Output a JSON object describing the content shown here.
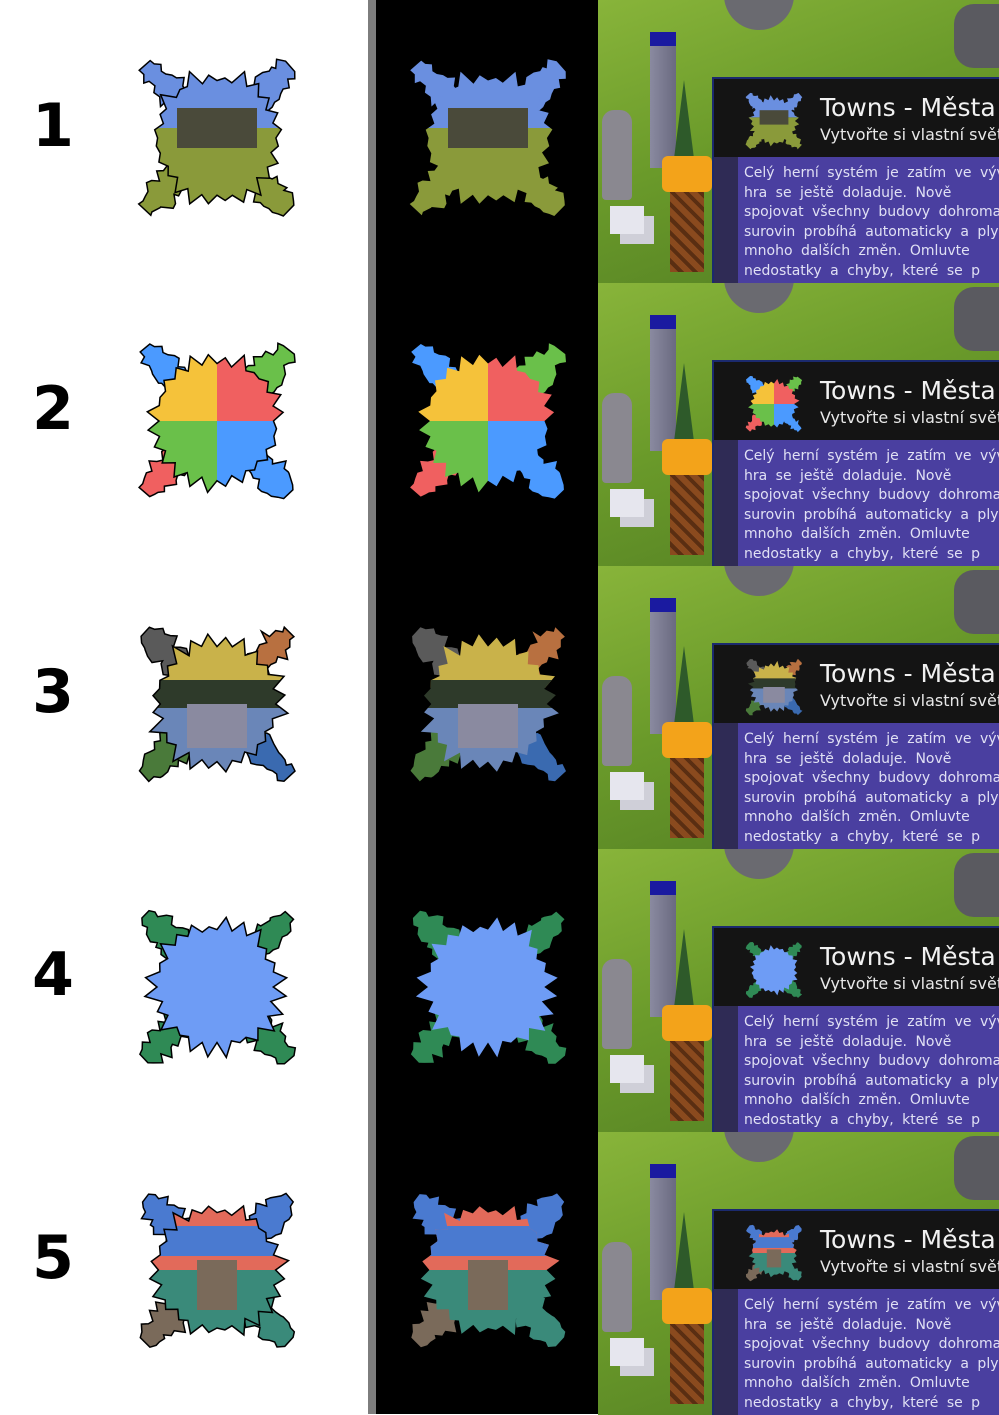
{
  "rows": [
    {
      "number": "1",
      "style": "landscape",
      "colors": [
        "#6a8fe0",
        "#8a9a3a",
        "#4a4a3a"
      ]
    },
    {
      "number": "2",
      "style": "quad",
      "colors": [
        "#f06060",
        "#f5c23a",
        "#6ac04a",
        "#4b9aff"
      ]
    },
    {
      "number": "3",
      "style": "painting",
      "colors": [
        "#5a5a5a",
        "#b87040",
        "#4a7a3a",
        "#3a6ab0"
      ]
    },
    {
      "number": "4",
      "style": "plain",
      "colors": [
        "#6e9cf5",
        "#2f8a55"
      ]
    },
    {
      "number": "5",
      "style": "colorful",
      "colors": [
        "#e26a5a",
        "#4a7ad0",
        "#3a8a7a",
        "#7a6a5a"
      ]
    }
  ],
  "panel": {
    "title": "Towns - Města",
    "subtitle": "Vytvořte si vlastní svět",
    "lines": [
      "Celý herní systém je zatím ve vývoj",
      "hra se ještě doladuje. Nově",
      "spojovat všechny budovy dohromady",
      "surovin probíhá automaticky a ply",
      "mnoho dalších změn. Omluvte",
      "nedostatky a chyby, které se p"
    ]
  },
  "colors": {
    "panel_body": "#4a3fa0",
    "panel_head": "#141414",
    "grass": "#6a9a2a",
    "divider": "#7d7d7d"
  }
}
